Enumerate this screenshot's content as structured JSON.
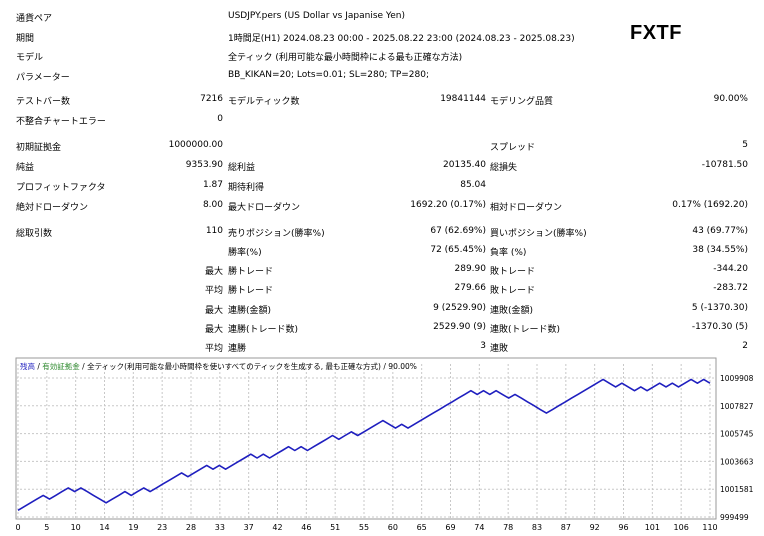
{
  "header": {
    "currency_pair_label": "通貨ペア",
    "currency_pair_value": "USDJPY.pers (US Dollar vs Japanise Yen)",
    "period_label": "期間",
    "period_value": "1時間足(H1) 2024.08.23 00:00 - 2025.08.22 23:00 (2024.08.23 - 2025.08.23)",
    "model_label": "モデル",
    "model_value": "全ティック (利用可能な最小時間枠による最も正確な方法)",
    "params_label": "パラメーター",
    "params_value": "BB_KIKAN=20; Lots=0.01; SL=280; TP=280;",
    "logo": "FXTF"
  },
  "stats": {
    "test_bars_label": "テストバー数",
    "test_bars_value": "7216",
    "model_ticks_label": "モデルティック数",
    "model_ticks_value": "19841144",
    "model_quality_label": "モデリング品質",
    "model_quality_value": "90.00%",
    "mismatch_label": "不整合チャートエラー",
    "mismatch_value": "0",
    "initial_deposit_label": "初期証拠金",
    "initial_deposit_value": "1000000.00",
    "spread_label": "スプレッド",
    "spread_value": "5",
    "net_profit_label": "純益",
    "net_profit_value": "9353.90",
    "gross_profit_label": "総利益",
    "gross_profit_value": "20135.40",
    "gross_loss_label": "総損失",
    "gross_loss_value": "-10781.50",
    "profit_factor_label": "プロフィットファクタ",
    "profit_factor_value": "1.87",
    "expected_payoff_label": "期待利得",
    "expected_payoff_value": "85.04",
    "abs_drawdown_label": "絶対ドローダウン",
    "abs_drawdown_value": "8.00",
    "max_drawdown_label": "最大ドローダウン",
    "max_drawdown_value": "1692.20 (0.17%)",
    "rel_drawdown_label": "相対ドローダウン",
    "rel_drawdown_value": "0.17% (1692.20)",
    "total_trades_label": "総取引数",
    "total_trades_value": "110",
    "short_pos_label": "売りポジション(勝率%)",
    "short_pos_value": "67 (62.69%)",
    "long_pos_label": "買いポジション(勝率%)",
    "long_pos_value": "43 (69.77%)",
    "win_pct_label": "勝率(%)",
    "win_pct_value": "72 (65.45%)",
    "loss_pct_label": "負率 (%)",
    "loss_pct_value": "38 (34.55%)",
    "max_label": "最大",
    "avg_label": "平均",
    "win_trade_label": "勝トレード",
    "loss_trade_label": "敗トレード",
    "max_win_trade_value": "289.90",
    "max_loss_trade_value": "-344.20",
    "avg_win_trade_value": "279.66",
    "avg_loss_trade_value": "-283.72",
    "consec_win_amount_label": "連勝(金額)",
    "consec_win_amount_value": "9 (2529.90)",
    "consec_loss_amount_label": "連敗(金額)",
    "consec_loss_amount_value": "5 (-1370.30)",
    "consec_win_count_label": "連勝(トレード数)",
    "consec_win_count_value": "2529.90 (9)",
    "consec_loss_count_label": "連敗(トレード数)",
    "consec_loss_count_value": "-1370.30 (5)",
    "avg_consec_win_label": "連勝",
    "avg_consec_win_value": "3",
    "avg_consec_loss_label": "連敗",
    "avg_consec_loss_value": "2"
  },
  "chart_data": {
    "type": "line",
    "legend": {
      "balance": "残高",
      "sep1": " / ",
      "margin": "有効証拠金",
      "sep2": " / ",
      "tick_desc": "全ティック(利用可能な最小時間枠を使いすべてのティックを生成する, 最も正確な方式)",
      "sep3": " / ",
      "quality": "90.00%"
    },
    "colors": {
      "line": "#1f1fbf",
      "legend_balance": "#1f1fbf",
      "legend_margin": "#2e8b2e",
      "grid": "#c8c8c8"
    },
    "x_ticks": [
      "0",
      "5",
      "10",
      "14",
      "19",
      "23",
      "28",
      "33",
      "37",
      "42",
      "46",
      "51",
      "55",
      "60",
      "65",
      "69",
      "74",
      "78",
      "83",
      "87",
      "92",
      "96",
      "101",
      "106",
      "110"
    ],
    "y_ticks": [
      "999499",
      "1001581",
      "1003663",
      "1005745",
      "1007827",
      "1009908"
    ],
    "ylim": [
      999499,
      1009908
    ],
    "xlim": [
      0,
      110
    ],
    "series": [
      {
        "x": [
          0,
          1,
          2,
          3,
          4,
          5,
          6,
          7,
          8,
          9,
          10,
          11,
          12,
          13,
          14,
          15,
          16,
          17,
          18,
          19,
          20,
          21,
          22,
          23,
          24,
          25,
          26,
          27,
          28,
          29,
          30,
          31,
          32,
          33,
          34,
          35,
          36,
          37,
          38,
          39,
          40,
          41,
          42,
          43,
          44,
          45,
          46,
          47,
          48,
          49,
          50,
          51,
          52,
          53,
          54,
          55,
          56,
          57,
          58,
          59,
          60,
          61,
          62,
          63,
          64,
          65,
          66,
          67,
          68,
          69,
          70,
          71,
          72,
          73,
          74,
          75,
          76,
          77,
          78,
          79,
          80,
          81,
          82,
          83,
          84,
          85,
          86,
          87,
          88,
          89,
          90,
          91,
          92,
          93,
          94,
          95,
          96,
          97,
          98,
          99,
          100,
          101,
          102,
          103,
          104,
          105,
          106,
          107,
          108,
          109,
          110
        ],
        "values": [
          1000000,
          1000280,
          1000560,
          1000840,
          1001120,
          1000840,
          1001120,
          1001400,
          1001680,
          1001400,
          1001680,
          1001400,
          1001120,
          1000840,
          1000560,
          1000840,
          1001120,
          1001400,
          1001120,
          1001400,
          1001680,
          1001400,
          1001680,
          1001960,
          1002240,
          1002520,
          1002800,
          1002520,
          1002800,
          1003080,
          1003360,
          1003080,
          1003360,
          1003080,
          1003360,
          1003640,
          1003920,
          1004200,
          1003920,
          1004200,
          1003920,
          1004200,
          1004480,
          1004760,
          1004480,
          1004760,
          1004480,
          1004760,
          1005040,
          1005320,
          1005600,
          1005320,
          1005600,
          1005880,
          1005600,
          1005880,
          1006160,
          1006440,
          1006720,
          1006440,
          1006160,
          1006440,
          1006160,
          1006440,
          1006720,
          1007000,
          1007280,
          1007560,
          1007840,
          1008120,
          1008400,
          1008680,
          1008960,
          1008680,
          1008960,
          1008680,
          1008960,
          1008680,
          1008400,
          1008680,
          1008400,
          1008120,
          1007840,
          1007560,
          1007280,
          1007560,
          1007840,
          1008120,
          1008400,
          1008680,
          1008960,
          1009240,
          1009520,
          1009800,
          1009520,
          1009240,
          1009520,
          1009240,
          1008960,
          1009240,
          1008960,
          1009240,
          1009520,
          1009240,
          1009520,
          1009240,
          1009520,
          1009800,
          1009520,
          1009800,
          1009520
        ]
      }
    ]
  }
}
